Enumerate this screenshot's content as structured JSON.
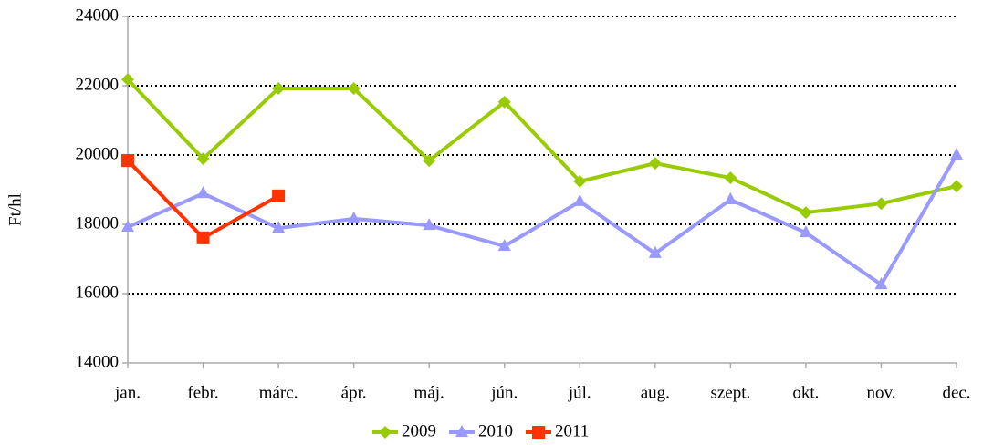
{
  "chart_data": {
    "type": "line",
    "y_label": "Ft/hl",
    "categories": [
      "jan.",
      "febr.",
      "márc.",
      "ápr.",
      "máj.",
      "jún.",
      "júl.",
      "aug.",
      "szept.",
      "okt.",
      "nov.",
      "dec."
    ],
    "series": [
      {
        "name": "2009",
        "color": "#99cc00",
        "marker": "diamond",
        "values": [
          22180,
          19890,
          21920,
          21920,
          19840,
          21530,
          19240,
          19760,
          19340,
          18340,
          18600,
          19100
        ]
      },
      {
        "name": "2010",
        "color": "#9999ff",
        "marker": "triangle",
        "values": [
          17920,
          18890,
          17890,
          18160,
          17970,
          17370,
          18660,
          17160,
          18710,
          17760,
          16260,
          20000
        ]
      },
      {
        "name": "2011",
        "color": "#ff3300",
        "marker": "square",
        "values": [
          19840,
          17610,
          18820,
          null,
          null,
          null,
          null,
          null,
          null,
          null,
          null,
          null
        ]
      }
    ],
    "ylim": [
      14000,
      24000
    ],
    "yticks": [
      14000,
      16000,
      18000,
      20000,
      22000,
      24000
    ],
    "grid": true,
    "legend": "bottom"
  }
}
